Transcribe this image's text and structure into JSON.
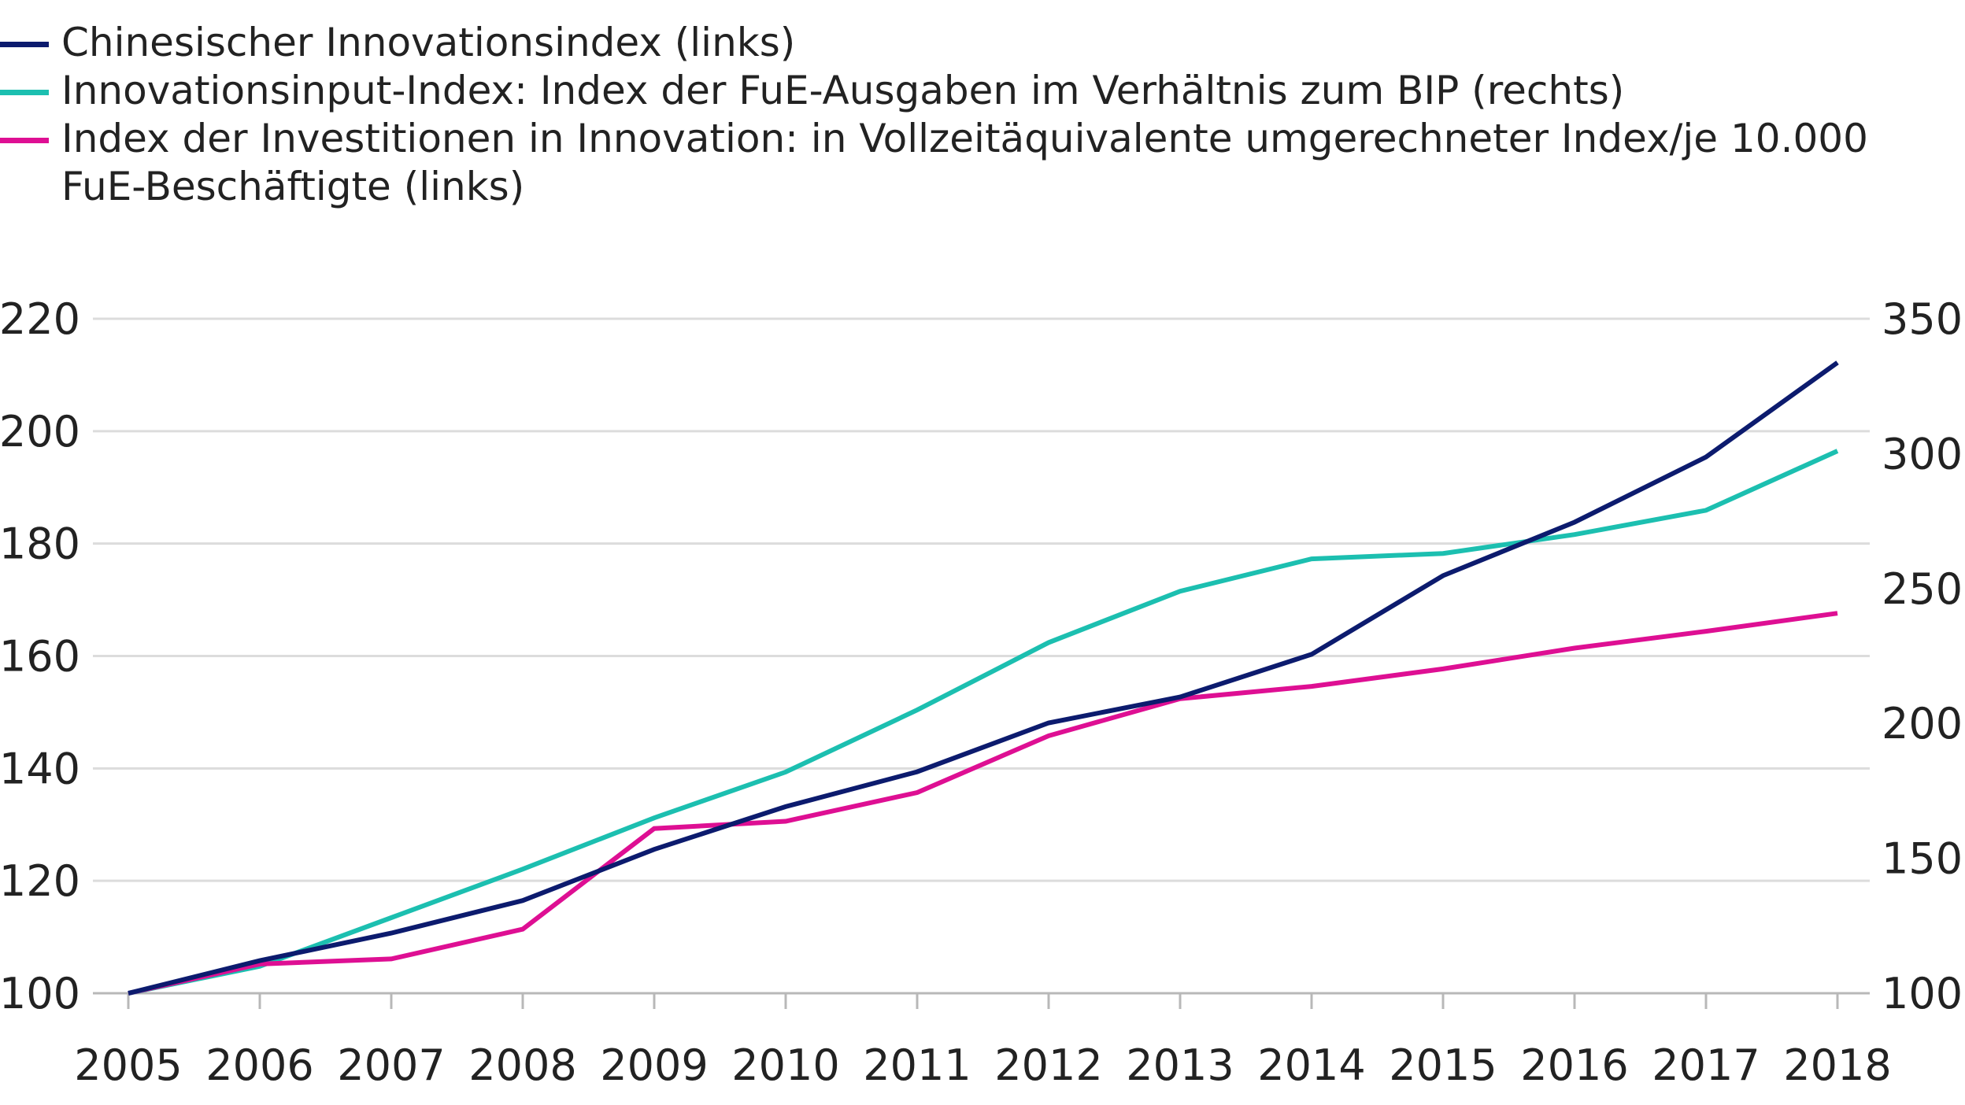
{
  "legend": [
    {
      "label": "Chinesischer Innovationsindex (links)",
      "color": "#0c1b6e"
    },
    {
      "label": "Innovationsinput-Index: Index der FuE-Ausgaben im Verhältnis zum BIP (rechts)",
      "color": "#1cbfb0"
    },
    {
      "label": "Index der Investitionen in Innovation: in Vollzeitäquivalente umgerechneter Index/je 10.000 FuE-Beschäftigte (links)",
      "color": "#de0f93"
    }
  ],
  "chart_data": {
    "type": "line",
    "x": [
      "2005",
      "2006",
      "2007",
      "2008",
      "2009",
      "2010",
      "2011",
      "2012",
      "2013",
      "2014",
      "2015",
      "2016",
      "2017",
      "2018"
    ],
    "series": [
      {
        "name": "Chinesischer Innovationsindex (links)",
        "axis": "left",
        "color": "#0c1b6e",
        "values": [
          100,
          105.8,
          110.7,
          116.5,
          125.6,
          133.2,
          139.4,
          148.1,
          152.7,
          160.3,
          174.3,
          183.8,
          195.4,
          212.2
        ]
      },
      {
        "name": "Innovationsinput-Index: Index der FuE-Ausgaben im Verhältnis zum BIP (rechts)",
        "axis": "right",
        "color": "#1cbfb0",
        "values": [
          100,
          110,
          128,
          146,
          165,
          182,
          205,
          230,
          249,
          261,
          263,
          270,
          279,
          301
        ]
      },
      {
        "name": "Index der Investitionen in Innovation: in Vollzeitäquivalente umgerechneter Index/je 10.000 FuE-Beschäftigte (links)",
        "axis": "left",
        "color": "#de0f93",
        "values": [
          100,
          105.2,
          106.1,
          111.4,
          129.3,
          130.6,
          135.7,
          145.8,
          152.4,
          154.6,
          157.7,
          161.4,
          164.4,
          167.6
        ]
      }
    ],
    "yleft": {
      "min": 100,
      "max": 220,
      "ticks": [
        220,
        200,
        180,
        160,
        140,
        120,
        100
      ]
    },
    "yright": {
      "min": 100,
      "max": 350,
      "ticks": [
        350,
        300,
        250,
        200,
        150,
        100
      ]
    },
    "grid": true,
    "legend_position": "top-left"
  }
}
